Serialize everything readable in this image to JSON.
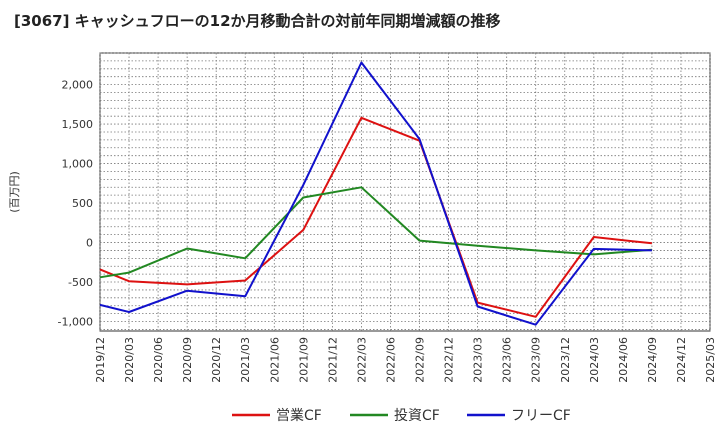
{
  "title": "[3067]  キャッシュフローの12か月移動合計の対前年同期増減額の推移",
  "chart_data": {
    "type": "line",
    "ylabel": "(百万円)",
    "ylim": [
      -1120,
      2400
    ],
    "yticks": [
      -1000,
      -500,
      0,
      500,
      1000,
      1500,
      2000
    ],
    "ytick_labels": [
      "-1,000",
      "-500",
      "0",
      "500",
      "1,000",
      "1,500",
      "2,000"
    ],
    "x_ticks": [
      "2019/12",
      "2020/03",
      "2020/06",
      "2020/09",
      "2020/12",
      "2021/03",
      "2021/06",
      "2021/09",
      "2021/12",
      "2022/03",
      "2022/06",
      "2022/09",
      "2022/12",
      "2023/03",
      "2023/06",
      "2023/09",
      "2023/12",
      "2024/03",
      "2024/06",
      "2024/09",
      "2024/12",
      "2025/03"
    ],
    "grid": true,
    "legend_position": "bottom",
    "series": [
      {
        "name": "営業CF",
        "color": "#dd1111",
        "x": [
          "2019/12",
          "2020/03",
          "2020/09",
          "2021/03",
          "2021/09",
          "2022/03",
          "2022/09",
          "2023/03",
          "2023/09",
          "2024/03",
          "2024/09"
        ],
        "values": [
          -340,
          -490,
          -530,
          -480,
          160,
          1580,
          1290,
          -760,
          -940,
          70,
          -10
        ]
      },
      {
        "name": "投資CF",
        "color": "#228822",
        "x": [
          "2019/12",
          "2020/03",
          "2020/09",
          "2021/03",
          "2021/09",
          "2022/03",
          "2022/09",
          "2023/03",
          "2023/09",
          "2024/03",
          "2024/09"
        ],
        "values": [
          -440,
          -380,
          -75,
          -200,
          570,
          700,
          25,
          -40,
          -100,
          -150,
          -90
        ]
      },
      {
        "name": "フリーCF",
        "color": "#1111cc",
        "x": [
          "2019/12",
          "2020/03",
          "2020/09",
          "2021/03",
          "2021/09",
          "2022/03",
          "2022/09",
          "2023/03",
          "2023/09",
          "2024/03",
          "2024/09"
        ],
        "values": [
          -790,
          -880,
          -610,
          -680,
          730,
          2280,
          1310,
          -810,
          -1040,
          -80,
          -100
        ]
      }
    ]
  }
}
